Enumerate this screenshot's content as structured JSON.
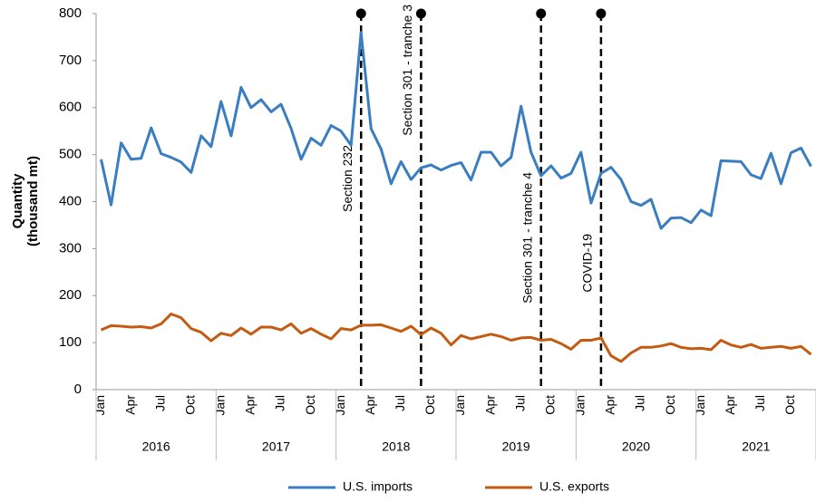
{
  "chart_data": {
    "type": "line",
    "ylabel": [
      "Quantity",
      "(thousand mt)"
    ],
    "categories": [
      "Jan",
      null,
      null,
      "Apr",
      null,
      null,
      "Jul",
      null,
      null,
      "Oct",
      null,
      null,
      "Jan",
      null,
      null,
      "Apr",
      null,
      null,
      "Jul",
      null,
      null,
      "Oct",
      null,
      null,
      "Jan",
      null,
      null,
      "Apr",
      null,
      null,
      "Jul",
      null,
      null,
      "Oct",
      null,
      null,
      "Jan",
      null,
      null,
      "Apr",
      null,
      null,
      "Jul",
      null,
      null,
      "Oct",
      null,
      null,
      "Jan",
      null,
      null,
      "Apr",
      null,
      null,
      "Jul",
      null,
      null,
      "Oct",
      null,
      null,
      "Jan",
      null,
      null,
      "Apr",
      null,
      null,
      "Jul",
      null,
      null,
      "Oct",
      null,
      null
    ],
    "years": [
      "2016",
      "2017",
      "2018",
      "2019",
      "2020",
      "2021"
    ],
    "series": [
      {
        "name": "U.S. imports",
        "color": "#3a7dc0",
        "values": [
          490,
          393,
          525,
          490,
          492,
          557,
          502,
          494,
          484,
          462,
          540,
          517,
          613,
          540,
          643,
          600,
          617,
          591,
          607,
          556,
          490,
          535,
          520,
          562,
          550,
          520,
          760,
          555,
          512,
          438,
          485,
          447,
          472,
          478,
          467,
          477,
          483,
          446,
          505,
          505,
          476,
          494,
          603,
          505,
          455,
          476,
          450,
          460,
          505,
          397,
          460,
          473,
          447,
          400,
          392,
          405,
          343,
          365,
          366,
          355,
          382,
          370,
          487,
          486,
          485,
          457,
          449,
          503,
          438,
          504,
          514,
          475
        ]
      },
      {
        "name": "U.S. exports",
        "color": "#c55a11",
        "values": [
          127,
          136,
          135,
          133,
          134,
          131,
          140,
          161,
          153,
          130,
          122,
          104,
          120,
          115,
          131,
          118,
          133,
          133,
          127,
          140,
          120,
          130,
          118,
          108,
          130,
          127,
          137,
          137,
          138,
          131,
          124,
          135,
          117,
          131,
          120,
          95,
          115,
          108,
          113,
          118,
          113,
          105,
          110,
          111,
          105,
          107,
          98,
          86,
          105,
          105,
          110,
          72,
          60,
          78,
          90,
          90,
          93,
          98,
          90,
          87,
          88,
          85,
          105,
          95,
          90,
          96,
          88,
          90,
          92,
          88,
          92,
          75
        ]
      }
    ],
    "annotations": [
      {
        "label": "Section 232",
        "category_index": 26
      },
      {
        "label": "Section 301 - tranche 3",
        "category_index": 32
      },
      {
        "label": "Section 301 - tranche 4",
        "category_index": 44
      },
      {
        "label": "COVID-19",
        "category_index": 50
      }
    ],
    "ylim": [
      0,
      800
    ],
    "yticks": [
      0,
      100,
      200,
      300,
      400,
      500,
      600,
      700,
      800
    ],
    "legend": "bottom"
  }
}
